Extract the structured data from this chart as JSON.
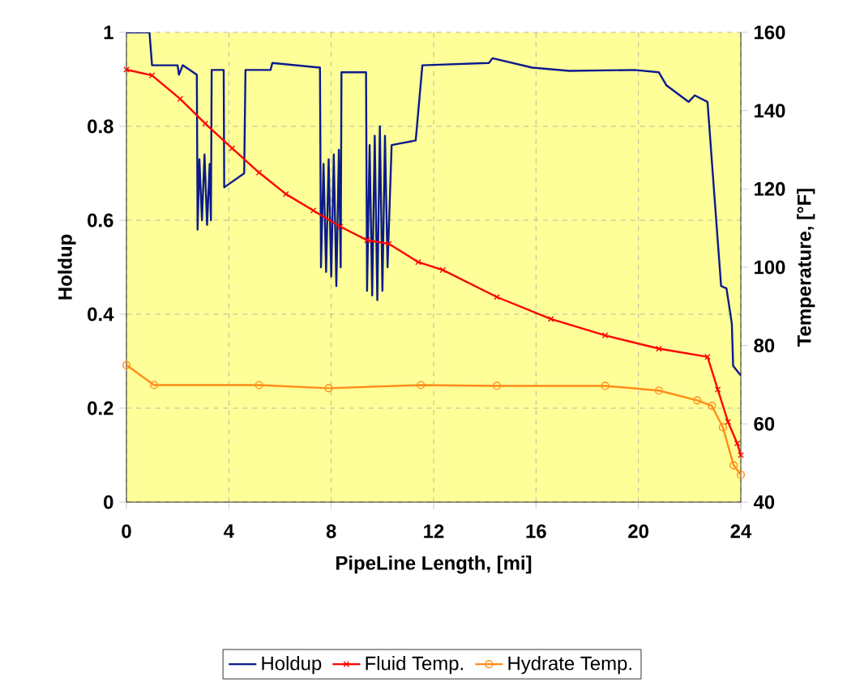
{
  "chart_data": {
    "type": "line",
    "xlabel": "PipeLine Length, [mi]",
    "ylabel": "Holdup",
    "y2label": "Temperature, [°F]",
    "xlim": [
      0,
      24
    ],
    "xticks": [
      0,
      4,
      8,
      12,
      16,
      20,
      24
    ],
    "ylim": [
      0,
      1
    ],
    "yticks": [
      0,
      0.2,
      0.4,
      0.6,
      0.8,
      1
    ],
    "y2lim": [
      40,
      160
    ],
    "y2ticks": [
      40,
      60,
      80,
      100,
      120,
      140,
      160
    ],
    "grid": true,
    "legend": "bottom",
    "series": [
      {
        "name": "Holdup",
        "color": "#0a1a8c",
        "marker": "none",
        "x": [
          0,
          0.9,
          1.0,
          2.0,
          2.05,
          2.2,
          2.75,
          2.78,
          2.85,
          2.95,
          3.05,
          3.15,
          3.25,
          3.3,
          3.33,
          3.8,
          3.82,
          4.6,
          4.65,
          5.63,
          5.7,
          7.56,
          7.6,
          7.7,
          7.8,
          7.9,
          8.0,
          8.1,
          8.2,
          8.3,
          8.37,
          8.4,
          9.36,
          9.4,
          9.5,
          9.6,
          9.7,
          9.8,
          9.9,
          10.0,
          10.1,
          10.2,
          10.36,
          11.3,
          11.56,
          14.16,
          14.3,
          15.85,
          17.3,
          19.85,
          20.8,
          21.1,
          21.96,
          22.2,
          22.7,
          22.87,
          23.23,
          23.44,
          23.65,
          23.7,
          23.92,
          24
        ],
        "values": [
          1,
          1,
          0.93,
          0.93,
          0.91,
          0.93,
          0.91,
          0.58,
          0.73,
          0.6,
          0.74,
          0.59,
          0.72,
          0.6,
          0.92,
          0.92,
          0.67,
          0.7,
          0.92,
          0.92,
          0.935,
          0.925,
          0.5,
          0.72,
          0.49,
          0.73,
          0.48,
          0.74,
          0.46,
          0.75,
          0.5,
          0.915,
          0.915,
          0.45,
          0.76,
          0.44,
          0.78,
          0.43,
          0.8,
          0.45,
          0.78,
          0.5,
          0.76,
          0.77,
          0.93,
          0.935,
          0.945,
          0.925,
          0.918,
          0.92,
          0.915,
          0.887,
          0.852,
          0.866,
          0.852,
          0.725,
          0.46,
          0.455,
          0.38,
          0.29,
          0.275,
          0.27
        ]
      },
      {
        "name": "Fluid Temp.",
        "color": "#ff0000",
        "marker": "cross",
        "axis": "y2",
        "x": [
          0,
          1.0,
          2.1,
          3.08,
          4.13,
          5.18,
          6.23,
          7.3,
          8.35,
          9.4,
          10.25,
          11.4,
          12.36,
          14.47,
          16.58,
          18.7,
          20.8,
          22.7,
          23.1,
          23.5,
          23.86,
          24
        ],
        "values": [
          150.5,
          149,
          143,
          136.7,
          130.4,
          124.2,
          118.7,
          114.5,
          110.4,
          106.9,
          106,
          101.3,
          99.3,
          92.4,
          86.8,
          82.6,
          79.2,
          77.1,
          68.8,
          60.5,
          55,
          52
        ]
      },
      {
        "name": "Hydrate Temp.",
        "color": "#ff8c1a",
        "marker": "circle",
        "axis": "y2",
        "x": [
          0,
          1.08,
          5.18,
          7.9,
          11.5,
          14.47,
          18.7,
          20.8,
          22.3,
          22.87,
          23.3,
          23.72,
          24
        ],
        "values": [
          75,
          69.9,
          69.9,
          69.1,
          69.9,
          69.7,
          69.7,
          68.5,
          66,
          64.6,
          59.1,
          49.4,
          47
        ]
      }
    ]
  }
}
